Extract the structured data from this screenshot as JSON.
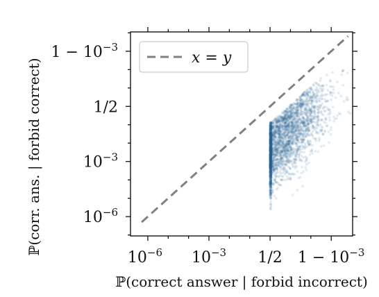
{
  "chart_data": {
    "type": "scatter",
    "scale": "logit",
    "xlabel": "ℙ(correct answer | forbid incorrect)",
    "ylabel": "ℙ(corr. ans. | forbid correct)",
    "x_ticks": [
      {
        "value": 1e-06,
        "label": "10",
        "exp": "−6"
      },
      {
        "value": 0.001,
        "label": "10",
        "exp": "−3"
      },
      {
        "value": 0.5,
        "label": "1/2",
        "exp": ""
      },
      {
        "value": 0.999,
        "label": "1 − 10",
        "exp": "−3"
      }
    ],
    "y_ticks": [
      {
        "value": 1e-06,
        "label": "10",
        "exp": "−6"
      },
      {
        "value": 0.001,
        "label": "10",
        "exp": "−3"
      },
      {
        "value": 0.5,
        "label": "1/2",
        "exp": ""
      },
      {
        "value": 0.999,
        "label": "1 − 10",
        "exp": "−3"
      }
    ],
    "reference_line": {
      "name": "x = y",
      "color": "#808080",
      "style": "dashed"
    },
    "legend": {
      "position": "top-left",
      "entries": [
        "x = y"
      ]
    },
    "scatter": {
      "color": "#2a6496",
      "opacity": 0.12,
      "n_points": 3000,
      "x_range": [
        0.5,
        0.9999
      ],
      "y_range": [
        3e-07,
        0.99
      ],
      "clusters": [
        {
          "x": 0.5,
          "y": 0.003,
          "weight": 0.5
        },
        {
          "x": 0.9,
          "y": 0.05,
          "weight": 0.35
        },
        {
          "x": 0.98,
          "y": 0.4,
          "weight": 0.15
        }
      ]
    },
    "grid": false
  }
}
